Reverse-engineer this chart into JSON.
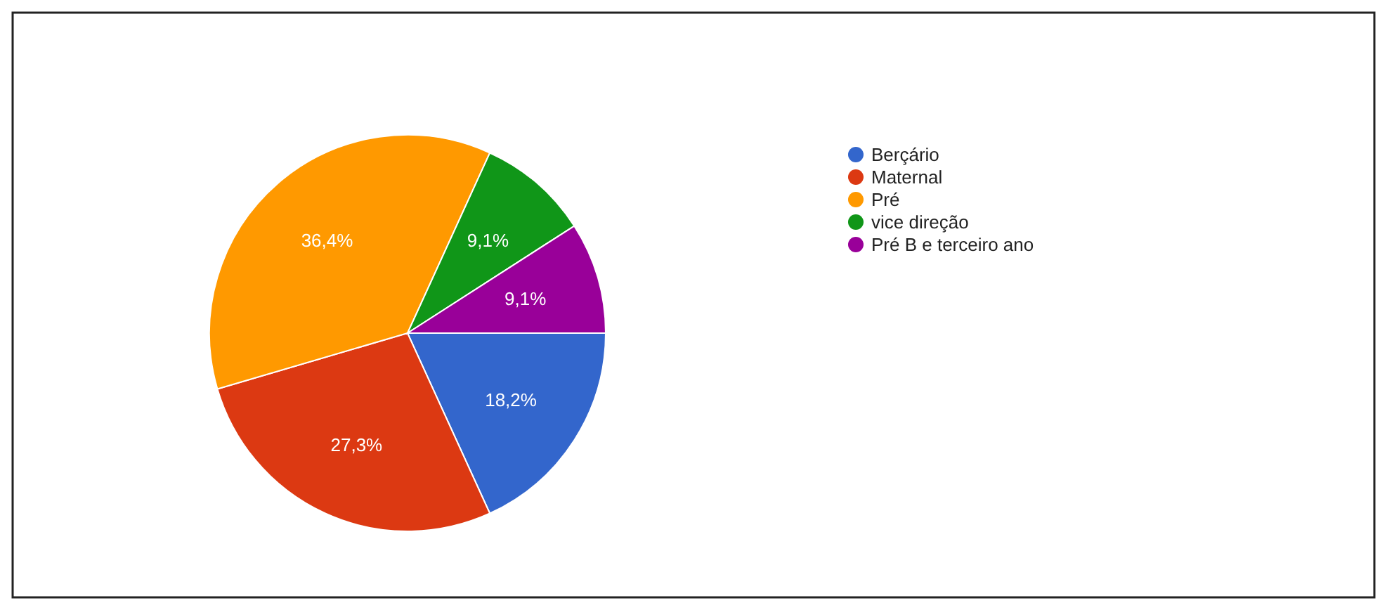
{
  "chart_data": {
    "type": "pie",
    "categories": [
      "Berçário",
      "Maternal",
      "Pré",
      "vice direção",
      "Pré B e terceiro ano"
    ],
    "values": [
      18.2,
      27.3,
      36.4,
      9.1,
      9.1
    ],
    "colors": [
      "#3366cc",
      "#dc3912",
      "#ff9900",
      "#109618",
      "#990099"
    ],
    "value_labels": [
      "18,2%",
      "27,3%",
      "36,4%",
      "9,1%",
      "9,1%"
    ],
    "legend": "right"
  }
}
